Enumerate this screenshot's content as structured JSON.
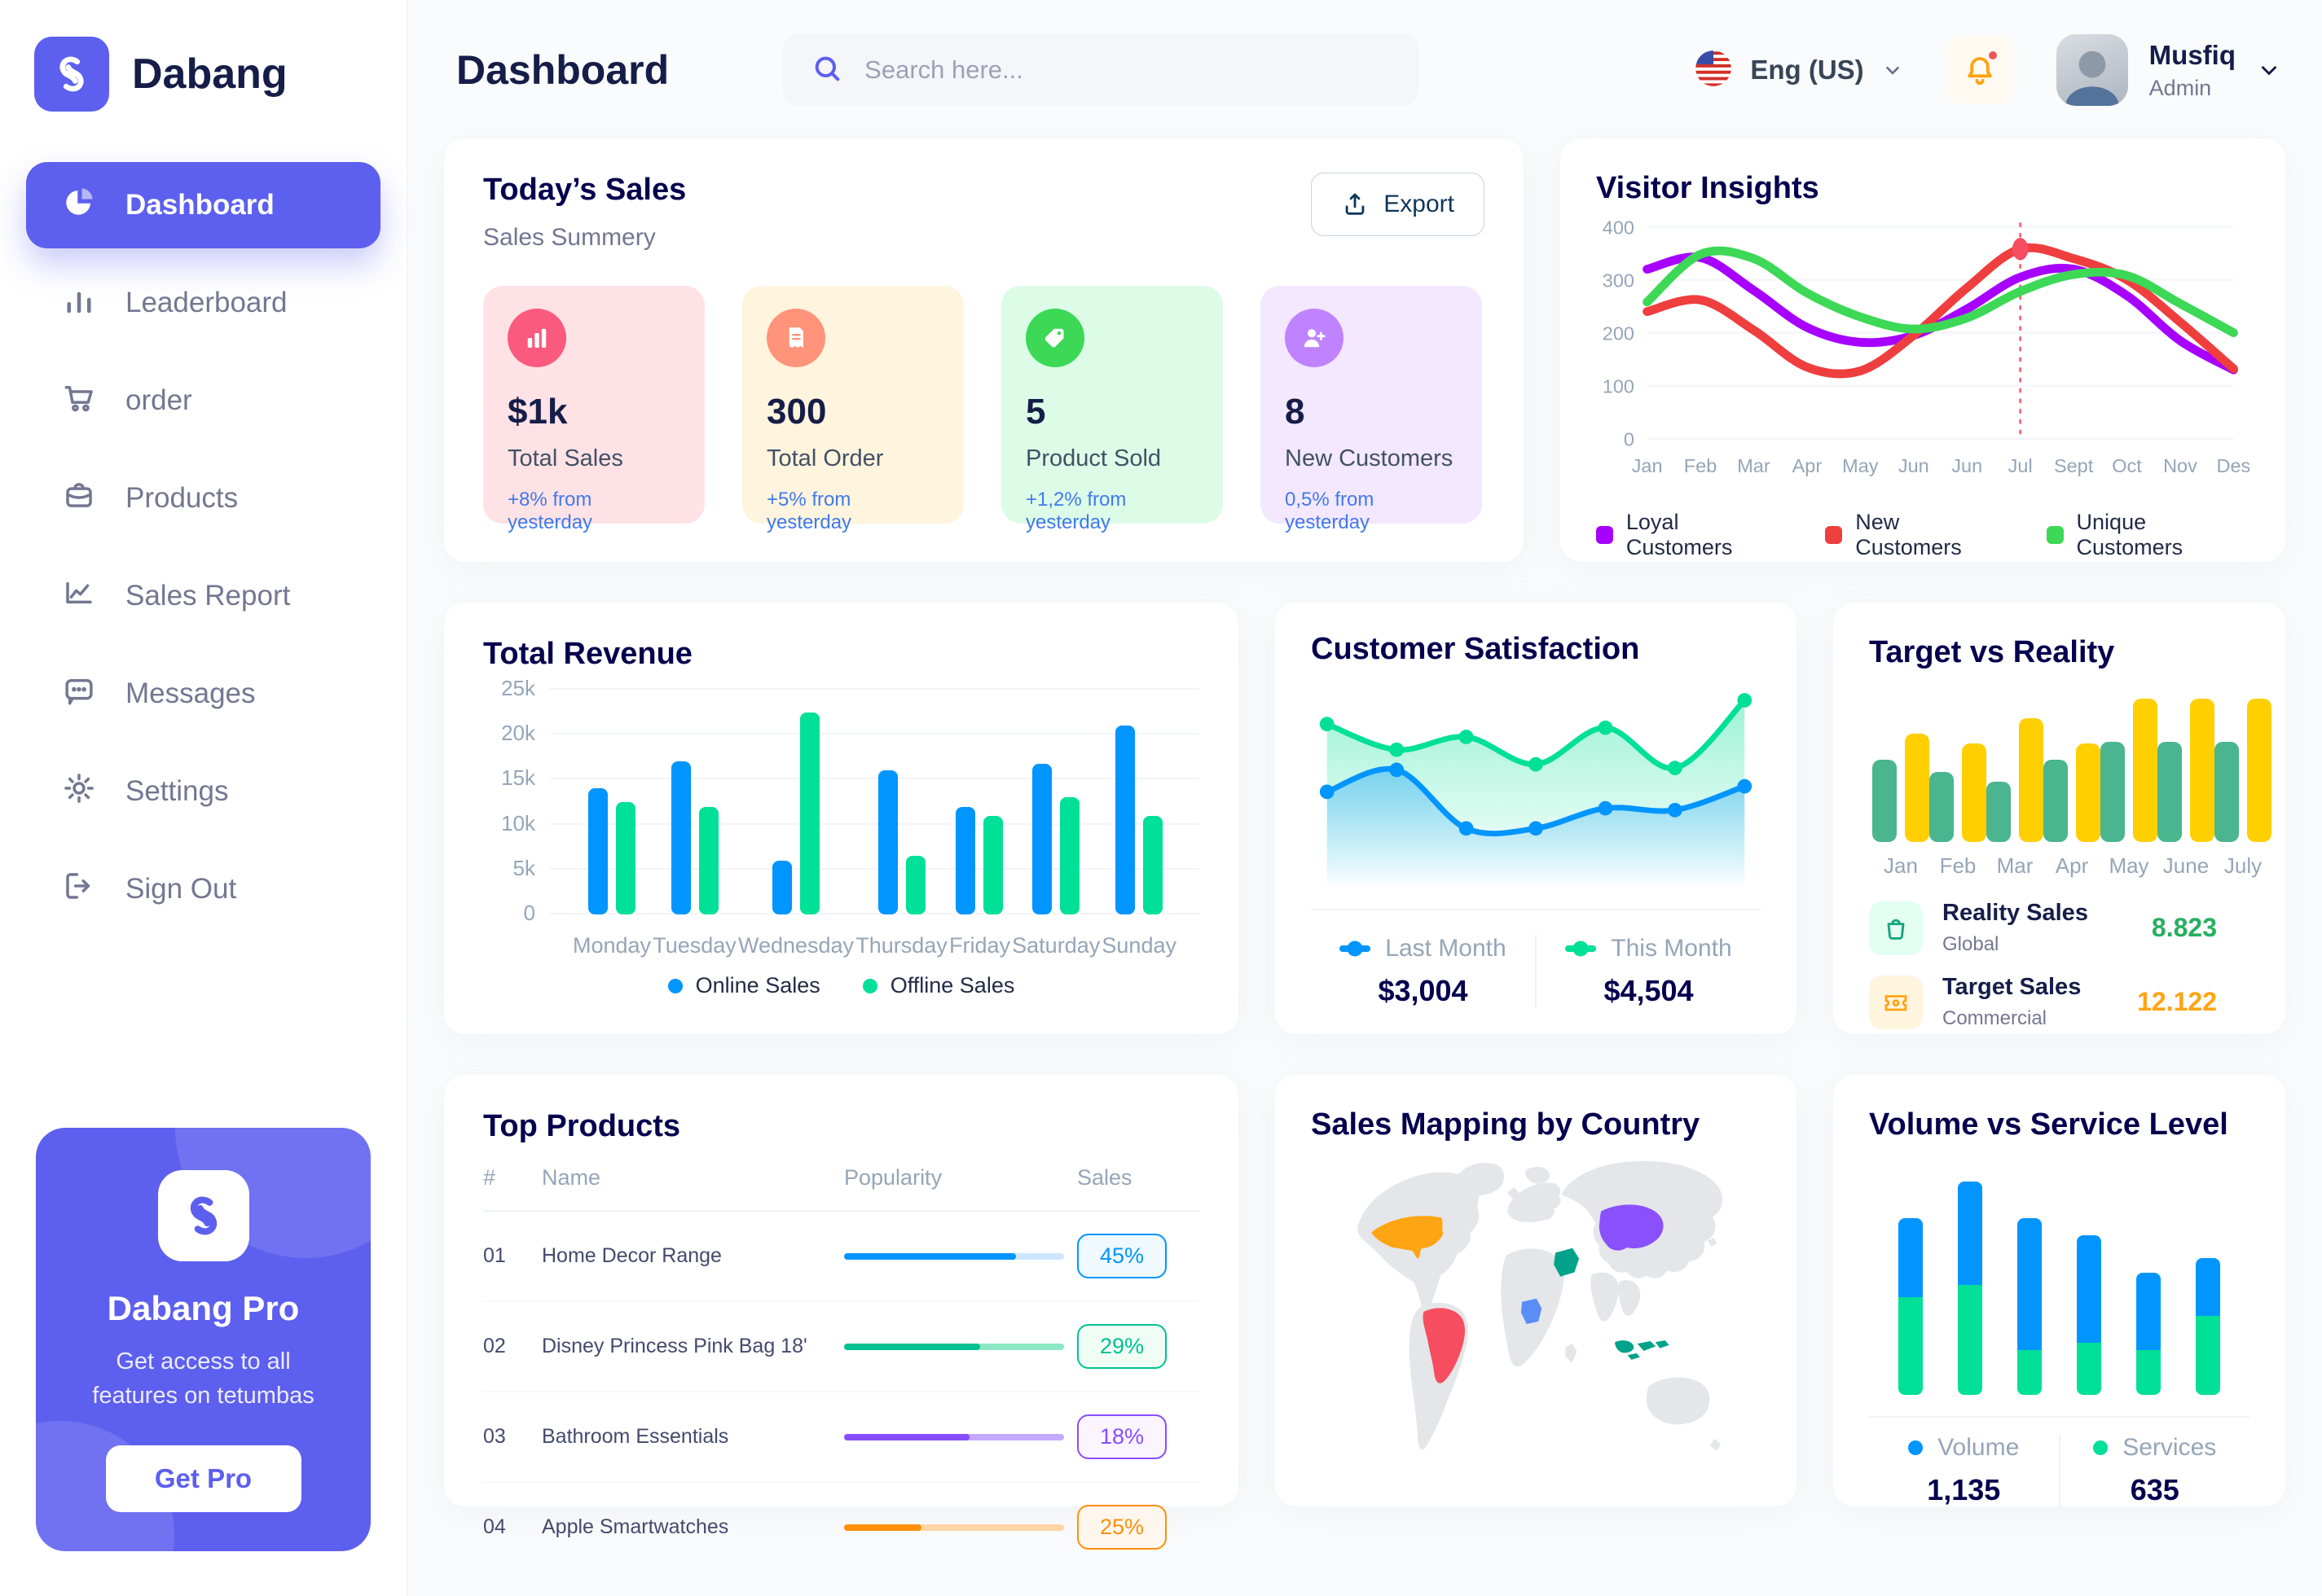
{
  "app": {
    "brand": "Dabang"
  },
  "header": {
    "title": "Dashboard",
    "search_placeholder": "Search here...",
    "language": "Eng (US)",
    "user_name": "Musfiq",
    "user_role": "Admin"
  },
  "sidebar": {
    "items": [
      {
        "label": "Dashboard",
        "icon": "pie-chart",
        "active": true
      },
      {
        "label": "Leaderboard",
        "icon": "bar-chart"
      },
      {
        "label": "order",
        "icon": "cart"
      },
      {
        "label": "Products",
        "icon": "briefcase"
      },
      {
        "label": "Sales Report",
        "icon": "line-chart"
      },
      {
        "label": "Messages",
        "icon": "message"
      },
      {
        "label": "Settings",
        "icon": "gear"
      },
      {
        "label": "Sign Out",
        "icon": "sign-out"
      }
    ],
    "pro": {
      "title": "Dabang Pro",
      "description": "Get access to all features on tetumbas",
      "button": "Get Pro"
    }
  },
  "todays_sales": {
    "title": "Today’s Sales",
    "subtitle": "Sales Summery",
    "export_label": "Export",
    "stats": [
      {
        "value": "$1k",
        "label": "Total Sales",
        "delta": "+8% from yesterday",
        "bg": "#FFE2E5",
        "icon_bg": "#FA5A7D",
        "icon": "chart-bars"
      },
      {
        "value": "300",
        "label": "Total Order",
        "delta": "+5% from yesterday",
        "bg": "#FFF4DE",
        "icon_bg": "#FF947A",
        "icon": "receipt"
      },
      {
        "value": "5",
        "label": "Product Sold",
        "delta": "+1,2% from yesterday",
        "bg": "#DCFCE7",
        "icon_bg": "#3CD856",
        "icon": "tag"
      },
      {
        "value": "8",
        "label": "New Customers",
        "delta": "0,5% from yesterday",
        "bg": "#F3E8FF",
        "icon_bg": "#BF83FF",
        "icon": "user-plus"
      }
    ]
  },
  "visitor_insights": {
    "title": "Visitor Insights",
    "chart": {
      "type": "line",
      "x": [
        "Jan",
        "Feb",
        "Mar",
        "Apr",
        "May",
        "Jun",
        "Jun",
        "Jul",
        "Sept",
        "Oct",
        "Nov",
        "Des"
      ],
      "ylim": [
        0,
        400
      ],
      "yticks": [
        0,
        100,
        200,
        300,
        400
      ],
      "series": [
        {
          "name": "Loyal Customers",
          "color": "#A700FF",
          "values": [
            320,
            342,
            280,
            210,
            182,
            195,
            245,
            305,
            320,
            270,
            185,
            130
          ]
        },
        {
          "name": "New Customers",
          "color": "#EF3E3E",
          "values": [
            240,
            262,
            205,
            135,
            128,
            195,
            285,
            358,
            340,
            300,
            220,
            132
          ]
        },
        {
          "name": "Unique Customers",
          "color": "#3CD856",
          "values": [
            258,
            348,
            340,
            275,
            230,
            207,
            228,
            278,
            310,
            308,
            255,
            200
          ]
        }
      ],
      "highlight": {
        "series": 1,
        "index": 7,
        "line_color": "#F64E60"
      }
    }
  },
  "total_revenue": {
    "title": "Total Revenue",
    "chart": {
      "type": "bar",
      "categories": [
        "Monday",
        "Tuesday",
        "Wednesday",
        "Thursday",
        "Friday",
        "Saturday",
        "Sunday"
      ],
      "yticks": [
        "0",
        "5k",
        "10k",
        "15k",
        "20k",
        "25k"
      ],
      "ymax": 25,
      "series": [
        {
          "name": "Online Sales",
          "color": "#0095FF",
          "values": [
            14,
            17,
            6,
            16,
            12,
            16.8,
            21
          ]
        },
        {
          "name": "Offline Sales",
          "color": "#00E096",
          "values": [
            12.5,
            12,
            22.5,
            6.5,
            11,
            13,
            11
          ]
        }
      ]
    }
  },
  "customer_satisfaction": {
    "title": "Customer Satisfaction",
    "chart": {
      "type": "area",
      "ylim": [
        0,
        100
      ],
      "series": [
        {
          "name": "Last Month",
          "color": "#0095FF",
          "total": "$3,004",
          "values": [
            45,
            57,
            25,
            25,
            36,
            35,
            48
          ]
        },
        {
          "name": "This Month",
          "color": "#00E096",
          "total": "$4,504",
          "values": [
            82,
            68,
            75,
            60,
            80,
            58,
            95
          ]
        }
      ]
    }
  },
  "target_vs_reality": {
    "title": "Target vs Reality",
    "chart": {
      "type": "bar",
      "categories": [
        "Jan",
        "Feb",
        "Mar",
        "Apr",
        "May",
        "June",
        "July"
      ],
      "ymax": 15,
      "series": [
        {
          "name": "Reality Sales",
          "color": "#4AB58E",
          "values": [
            8.2,
            7,
            6,
            8.2,
            10,
            10,
            10
          ]
        },
        {
          "name": "Target Sales",
          "color": "#FFCF00",
          "values": [
            10.8,
            9.8,
            12.3,
            9.8,
            14.3,
            14.3,
            14.3
          ]
        }
      ]
    },
    "legend": [
      {
        "title": "Reality Sales",
        "subtitle": "Global",
        "value": "8.823",
        "value_color": "#27AE60",
        "icon_bg": "#E2FFF1"
      },
      {
        "title": "Target Sales",
        "subtitle": "Commercial",
        "value": "12.122",
        "value_color": "#FFA412",
        "icon_bg": "#FFF4DE"
      }
    ]
  },
  "top_products": {
    "title": "Top Products",
    "columns": [
      "#",
      "Name",
      "Popularity",
      "Sales"
    ],
    "rows": [
      {
        "num": "01",
        "name": "Home Decor Range",
        "popularity": 78,
        "sales": "45%",
        "color": "#0095FF",
        "track": "#CDE7FF",
        "badge_bg": "#F0F9FF"
      },
      {
        "num": "02",
        "name": "Disney Princess Pink Bag 18'",
        "popularity": 62,
        "sales": "29%",
        "color": "#00C292",
        "track": "#8CE8C3",
        "badge_bg": "#F0FDF4"
      },
      {
        "num": "03",
        "name": "Bathroom Essentials",
        "popularity": 57,
        "sales": "18%",
        "color": "#884DFF",
        "track": "#C5A8FF",
        "badge_bg": "#FAF5FF"
      },
      {
        "num": "04",
        "name": "Apple Smartwatches",
        "popularity": 35,
        "sales": "25%",
        "color": "#FF8F0D",
        "track": "#FFD5A4",
        "badge_bg": "#FFF7ED"
      }
    ]
  },
  "sales_map": {
    "title": "Sales Mapping by Country",
    "land_color": "#E5E6EA",
    "countries": [
      {
        "id": "usa",
        "name": "United States",
        "color": "#FFA412"
      },
      {
        "id": "brazil",
        "name": "Brazil",
        "color": "#F64E60"
      },
      {
        "id": "saudi",
        "name": "Saudi Arabia",
        "color": "#00A389"
      },
      {
        "id": "congo",
        "name": "DR Congo",
        "color": "#5A8DF6"
      },
      {
        "id": "china",
        "name": "China",
        "color": "#8950FC"
      },
      {
        "id": "indonesia",
        "name": "Indonesia",
        "color": "#00A389"
      }
    ]
  },
  "volume_service": {
    "title": "Volume vs Service Level",
    "chart": {
      "type": "stacked-bar",
      "ymax": 18,
      "series": [
        {
          "name": "Volume",
          "color": "#0095FF",
          "total": "1,135",
          "values": [
            6.5,
            8.5,
            10.8,
            8.8,
            6.3,
            4.7
          ]
        },
        {
          "name": "Services",
          "color": "#00E096",
          "total": "635",
          "values": [
            8,
            9,
            3.7,
            4.3,
            3.7,
            6.5
          ]
        }
      ]
    }
  },
  "colors": {
    "accent": "#5D5FEF",
    "heading": "#05004E",
    "muted": "#737791"
  }
}
